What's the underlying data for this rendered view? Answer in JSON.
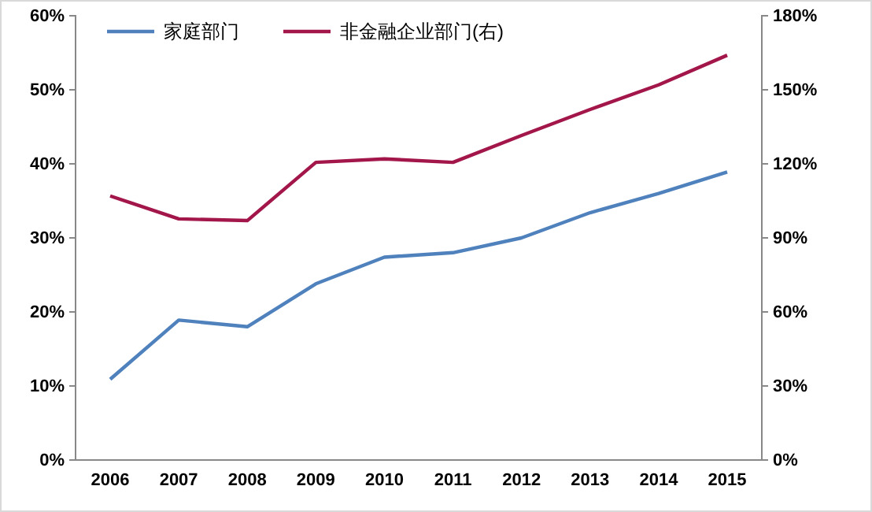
{
  "chart_data": {
    "type": "line",
    "categories": [
      "2006",
      "2007",
      "2008",
      "2009",
      "2010",
      "2011",
      "2012",
      "2013",
      "2014",
      "2015"
    ],
    "series": [
      {
        "name": "家庭部门",
        "color": "#4f81bd",
        "values": [
          10.9,
          18.9,
          18,
          23.8,
          27.4,
          28,
          30,
          33.4,
          36,
          38.9
        ]
      },
      {
        "name": "非金融企业部门(右)",
        "color": "#a3164a",
        "axis": "y2",
        "values": [
          107,
          97.7,
          97,
          120.6,
          122,
          120.6,
          131.5,
          142,
          152,
          164
        ]
      }
    ],
    "ylim": [
      0,
      60
    ],
    "yticks": [
      {
        "value": 0,
        "label": "0%"
      },
      {
        "value": 10,
        "label": "10%"
      },
      {
        "value": 20,
        "label": "20%"
      },
      {
        "value": 30,
        "label": "30%"
      },
      {
        "value": 40,
        "label": "40%"
      },
      {
        "value": 50,
        "label": "50%"
      },
      {
        "value": 60,
        "label": "60%"
      }
    ],
    "y2lim": [
      0,
      180
    ],
    "y2ticks": [
      {
        "value": 0,
        "label": "0%"
      },
      {
        "value": 30,
        "label": "30%"
      },
      {
        "value": 60,
        "label": "60%"
      },
      {
        "value": 90,
        "label": "90%"
      },
      {
        "value": 120,
        "label": "120%"
      },
      {
        "value": 150,
        "label": "150%"
      },
      {
        "value": 180,
        "label": "180%"
      }
    ],
    "grid": false,
    "legend": "top left",
    "marker": "none",
    "line_style": "solid"
  }
}
